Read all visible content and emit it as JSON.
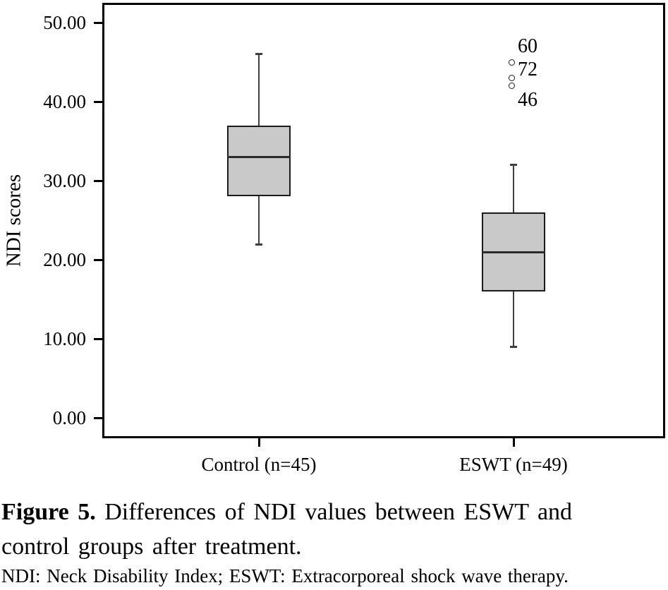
{
  "figure": {
    "caption_label": "Figure 5.",
    "caption_line1": "Differences of NDI values between ESWT and",
    "caption_line2": "control groups after treatment.",
    "footnote": "NDI: Neck Disability Index; ESWT: Extracorporeal shock wave therapy."
  },
  "colors": {
    "box_fill": "#c9c9c9",
    "box_border": "#1b1b1b",
    "median": "#2a2a2a",
    "whisker": "#3f3f3f",
    "axis": "#000000",
    "text": "#000000"
  },
  "chart_data": {
    "type": "boxplot",
    "title": "",
    "xlabel": "",
    "ylabel": "NDI scores",
    "ylim": [
      -2.5,
      52.5
    ],
    "grid": false,
    "legend": "none",
    "yticks": [
      {
        "label": "50.00",
        "value": 50
      },
      {
        "label": "40.00",
        "value": 40
      },
      {
        "label": "30.00",
        "value": 30
      },
      {
        "label": "20.00",
        "value": 20
      },
      {
        "label": "10.00",
        "value": 10
      },
      {
        "label": "0.00",
        "value": 0
      }
    ],
    "groups": [
      {
        "label": "Control (n=45)",
        "whisker_low": 22,
        "q1": 28,
        "median": 33,
        "q3": 37,
        "whisker_high": 46,
        "outliers": []
      },
      {
        "label": "ESWT (n=49)",
        "whisker_low": 9,
        "q1": 16,
        "median": 21,
        "q3": 26,
        "whisker_high": 32,
        "outliers": [
          {
            "value": 45,
            "case_label": "60",
            "label_value": 47.0
          },
          {
            "value": 43,
            "case_label": "72",
            "label_value": 44.0
          },
          {
            "value": 42,
            "case_label": "46",
            "label_value": 40.2
          }
        ]
      }
    ]
  }
}
